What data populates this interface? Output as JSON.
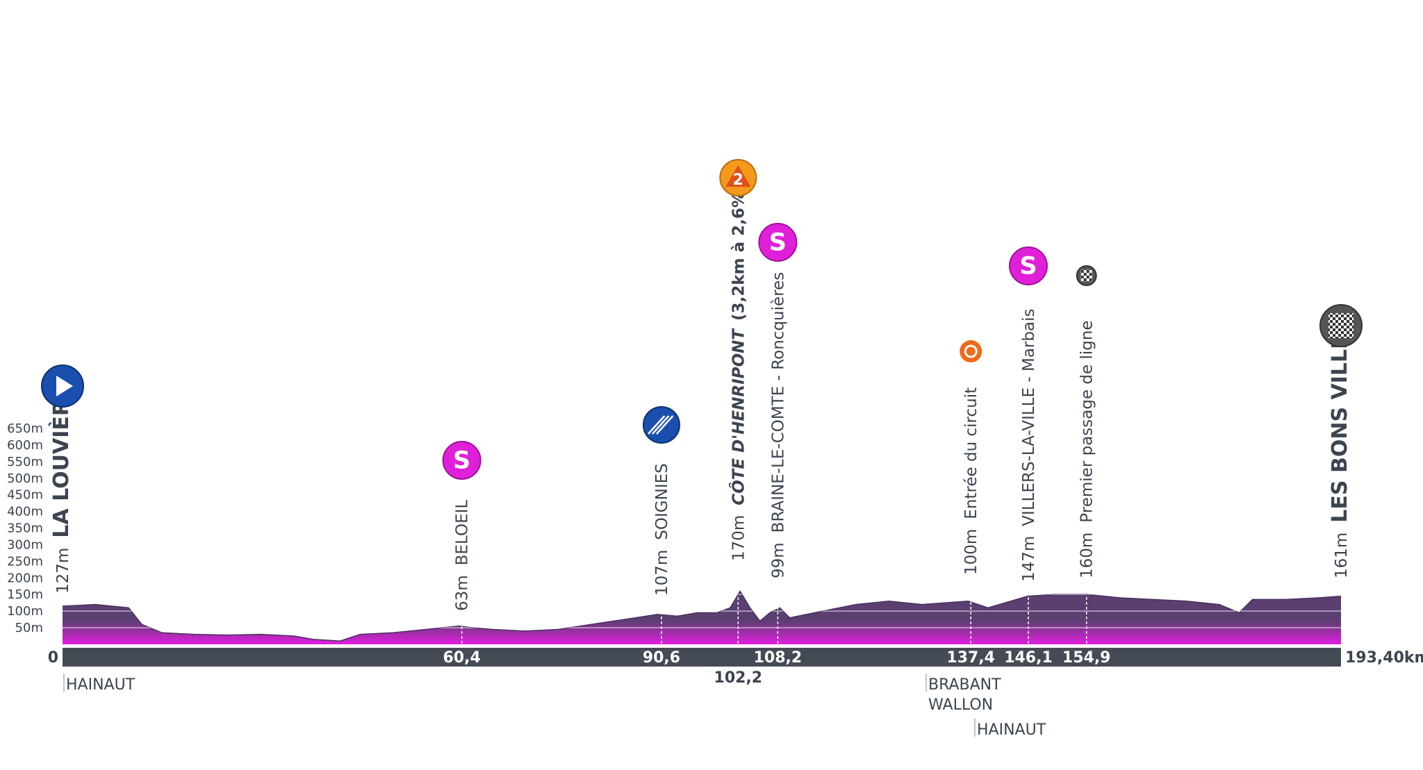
{
  "chart_data": {
    "type": "area",
    "x": [
      0,
      5,
      10,
      12,
      15,
      20,
      25,
      30,
      35,
      38,
      42,
      45,
      50,
      55,
      60,
      62,
      65,
      70,
      75,
      80,
      85,
      90,
      93,
      96,
      99,
      101,
      102.5,
      104,
      105.5,
      107,
      108.5,
      110,
      115,
      120,
      125,
      130,
      137,
      140,
      146,
      150,
      155,
      160,
      165,
      170,
      175,
      178,
      180,
      185,
      190,
      193.4
    ],
    "values": [
      115,
      120,
      110,
      60,
      35,
      30,
      28,
      30,
      25,
      15,
      10,
      30,
      35,
      45,
      55,
      50,
      45,
      40,
      45,
      60,
      75,
      90,
      85,
      95,
      95,
      110,
      160,
      110,
      70,
      95,
      110,
      80,
      100,
      120,
      130,
      120,
      130,
      110,
      145,
      150,
      150,
      140,
      135,
      130,
      120,
      95,
      135,
      135,
      140,
      145
    ],
    "xlim": [
      0,
      193.4
    ],
    "ylim": [
      0,
      650
    ],
    "yticks": [
      {
        "value": 50,
        "label": "50m"
      },
      {
        "value": 100,
        "label": "100m"
      },
      {
        "value": 150,
        "label": "150m"
      },
      {
        "value": 200,
        "label": "200m"
      },
      {
        "value": 250,
        "label": "250m"
      },
      {
        "value": 300,
        "label": "300m"
      },
      {
        "value": 350,
        "label": "350m"
      },
      {
        "value": 400,
        "label": "400m"
      },
      {
        "value": 450,
        "label": "450m"
      },
      {
        "value": 500,
        "label": "500m"
      },
      {
        "value": 550,
        "label": "550m"
      },
      {
        "value": 600,
        "label": "600m"
      },
      {
        "value": 650,
        "label": "650m"
      }
    ],
    "color_top": "#5b3f70",
    "color_bottom": "#e21ee0",
    "waypoints": [
      {
        "name": "LA LOUVIÈRE",
        "altitude": "127m",
        "km": {
          "value": 0,
          "label": "0"
        }
      },
      {
        "name": "BELOEIL",
        "altitude": "63m",
        "km": {
          "value": 60.4,
          "label": "60,4"
        },
        "badge": "S"
      },
      {
        "name": "SOIGNIES",
        "altitude": "107m",
        "km": {
          "value": 90.6,
          "label": "90,6"
        }
      },
      {
        "name": "CÔTE D'HENRIPONT",
        "detail": "(3,2km à 2,6%)",
        "altitude": "170m",
        "km": {
          "value": 102.2,
          "label": "102,2"
        },
        "badge": "2"
      },
      {
        "name": "BRAINE-LE-COMTE - Roncquières",
        "altitude": "99m",
        "km": {
          "value": 108.2,
          "label": "108,2"
        },
        "badge": "S"
      },
      {
        "name": "Entrée du circuit",
        "altitude": "100m",
        "km": {
          "value": 137.4,
          "label": "137,4"
        }
      },
      {
        "name": "VILLERS-LA-VILLE - Marbais",
        "altitude": "147m",
        "km": {
          "value": 146.1,
          "label": "146,1"
        },
        "badge": "S"
      },
      {
        "name": "Premier passage de ligne",
        "altitude": "160m",
        "km": {
          "value": 154.9,
          "label": "154,9"
        }
      },
      {
        "name": "LES BONS VILLERS",
        "altitude": "161m",
        "km": {
          "value": 193.4,
          "label": "193,40km"
        }
      }
    ],
    "regions": [
      {
        "lines": [
          "HAINAUT"
        ]
      },
      {
        "lines": [
          "BRABANT",
          "WALLON"
        ]
      },
      {
        "lines": [
          "HAINAUT"
        ]
      }
    ]
  }
}
